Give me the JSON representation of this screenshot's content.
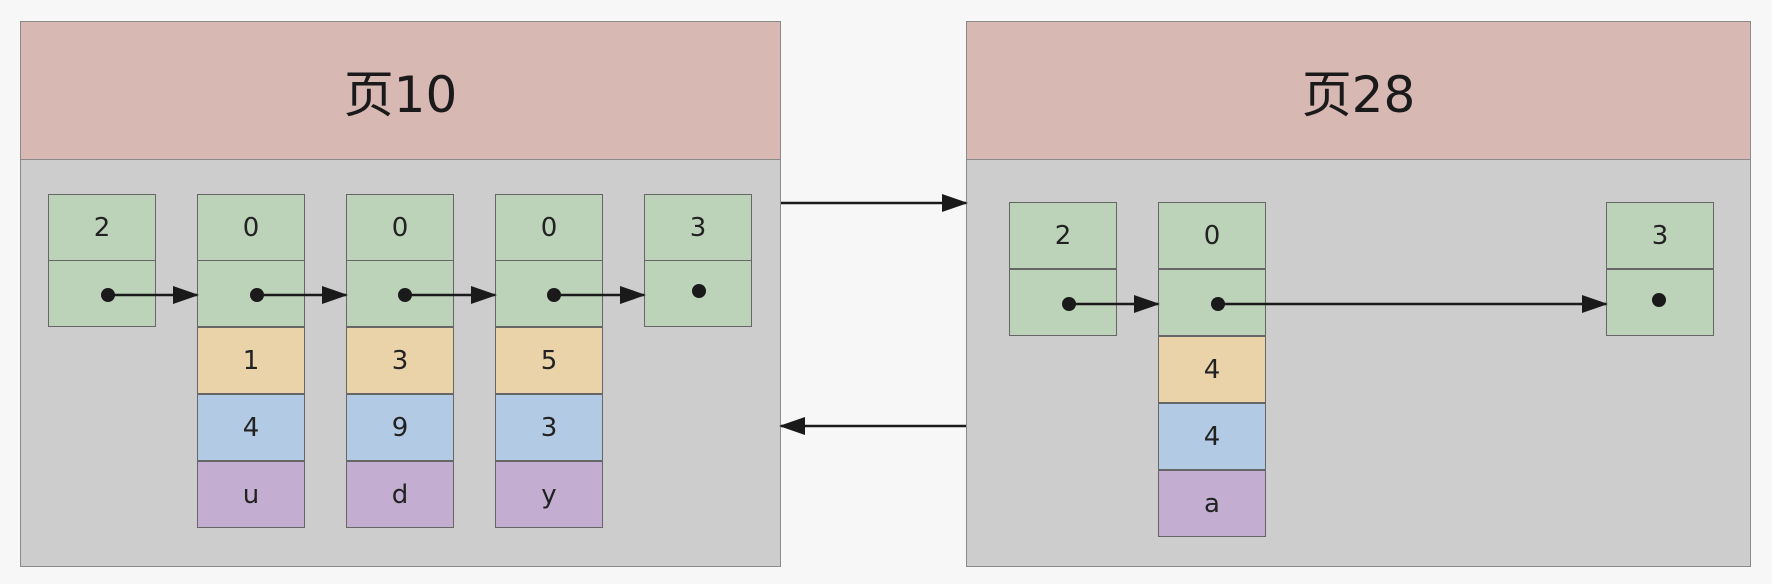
{
  "page_left": {
    "title": "页10",
    "records": [
      {
        "header": "2",
        "fields": []
      },
      {
        "header": "0",
        "fields": [
          "1",
          "4",
          "u"
        ]
      },
      {
        "header": "0",
        "fields": [
          "3",
          "9",
          "d"
        ]
      },
      {
        "header": "0",
        "fields": [
          "5",
          "3",
          "y"
        ]
      },
      {
        "header": "3",
        "fields": []
      }
    ]
  },
  "page_right": {
    "title": "页28",
    "records": [
      {
        "header": "2",
        "fields": []
      },
      {
        "header": "0",
        "fields": [
          "4",
          "4",
          "a"
        ]
      },
      {
        "header": "3",
        "fields": []
      }
    ]
  },
  "colors": {
    "header": "#d8b8b3",
    "page_body": "#cdcdcd",
    "record_header": "#bcd3b9",
    "field_1": "#ebd3a9",
    "field_2": "#b2cae3",
    "field_3": "#c3aed1"
  }
}
